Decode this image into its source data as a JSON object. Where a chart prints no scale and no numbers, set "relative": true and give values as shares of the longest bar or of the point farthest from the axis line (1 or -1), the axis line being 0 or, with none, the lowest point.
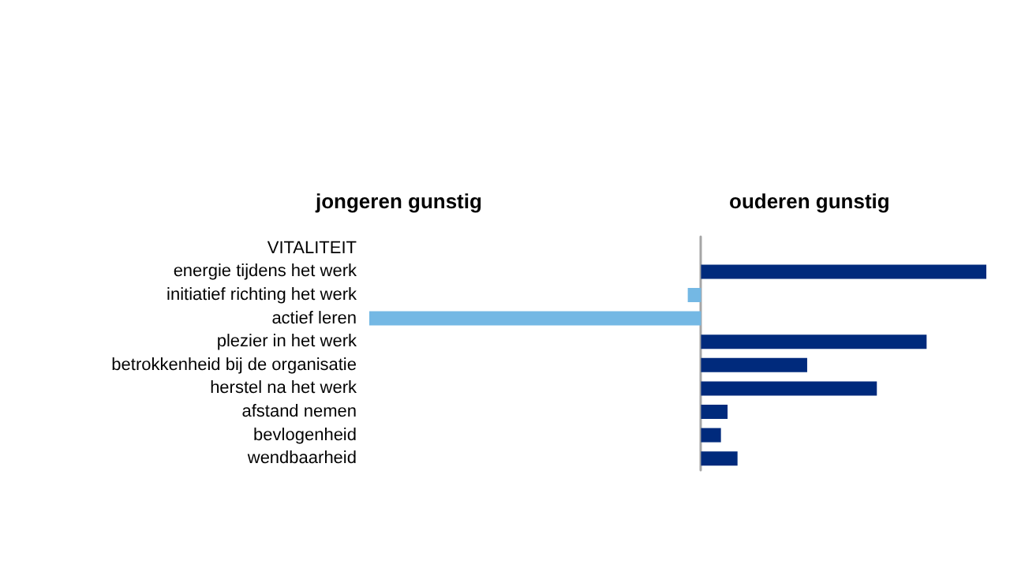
{
  "chart_data": {
    "type": "bar",
    "orientation": "horizontal",
    "relative": true,
    "annotations": [
      "jongeren gunstig",
      "ouderen gunstig"
    ],
    "categories": [
      "VITALITEIT",
      "energie tijdens het werk",
      "initiatief richting het werk",
      "actief leren",
      "plezier in het werk",
      "betrokkenheid bij de organisatie",
      "herstel na het werk",
      "afstand nemen",
      "bevlogenheid",
      "wendbaarheid"
    ],
    "values": [
      null,
      0.86,
      -0.04,
      -1,
      0.68,
      0.32,
      0.53,
      0.08,
      0.06,
      0.11
    ],
    "colors": [
      "#002a7c",
      "#002a7c",
      "#74b8e4",
      "#74b8e4",
      "#002a7c",
      "#002a7c",
      "#002a7c",
      "#002a7c",
      "#002a7c",
      "#002a7c"
    ]
  }
}
